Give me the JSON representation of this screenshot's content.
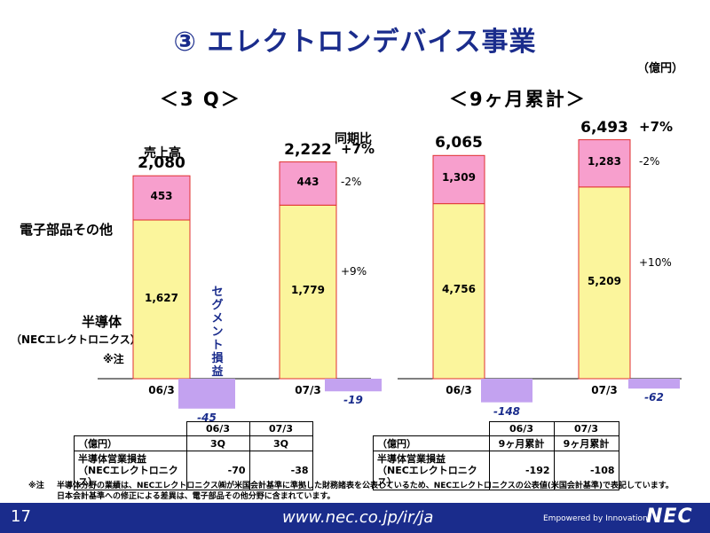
{
  "title": "③ エレクトロンデバイス事業",
  "unit": "（億円）",
  "left_panel": {
    "title": "＜3 Q＞"
  },
  "right_panel": {
    "title": "＜9ヶ月累計＞"
  },
  "labels": {
    "sales": "売上高",
    "electronic_parts": "電子部品その他",
    "semiconductor": "半導体",
    "nec_electronics": "（NECエレクトロニクス）",
    "note_mark": "※注",
    "yoy_header": "同期比",
    "segment_loss": "セグメント損益"
  },
  "chart_data": [
    {
      "type": "bar",
      "stacked": true,
      "categories": [
        "06/3",
        "07/3"
      ],
      "series": [
        {
          "name": "半導体",
          "values": [
            1627,
            1779
          ]
        },
        {
          "name": "電子部品その他",
          "values": [
            453,
            443
          ]
        },
        {
          "name": "セグメント損益",
          "values": [
            -45,
            -19
          ]
        }
      ],
      "totals": [
        2080,
        2222
      ],
      "totals_text": [
        "2,080",
        "2,222"
      ],
      "semi_text": [
        "1,627",
        "1,779"
      ],
      "parts_text": [
        "453",
        "443"
      ],
      "segment_text": [
        "-45",
        "-19"
      ],
      "yoy": {
        "total": "+7%",
        "parts": "-2%",
        "semi": "+9%"
      }
    },
    {
      "type": "bar",
      "stacked": true,
      "categories": [
        "06/3",
        "07/3"
      ],
      "series": [
        {
          "name": "半導体",
          "values": [
            4756,
            5209
          ]
        },
        {
          "name": "電子部品その他",
          "values": [
            1309,
            1283
          ]
        },
        {
          "name": "セグメント損益",
          "values": [
            -148,
            -62
          ]
        }
      ],
      "totals": [
        6065,
        6493
      ],
      "totals_text": [
        "6,065",
        "6,493"
      ],
      "semi_text": [
        "4,756",
        "5,209"
      ],
      "parts_text": [
        "1,309",
        "1,283"
      ],
      "segment_text": [
        "-148",
        "-62"
      ],
      "yoy": {
        "total": "+7%",
        "parts": "-2%",
        "semi": "+10%"
      }
    }
  ],
  "tables": {
    "left": {
      "header_cols": [
        "06/3",
        "07/3"
      ],
      "unit_label": "（億円）",
      "sub_cols": [
        "3Q",
        "3Q"
      ],
      "row_label_1": "半導体営業損益",
      "row_label_2": "（NECエレクトロニクス）",
      "values": [
        "-70",
        "-38"
      ]
    },
    "right": {
      "header_cols": [
        "06/3",
        "07/3"
      ],
      "unit_label": "（億円）",
      "sub_cols": [
        "9ヶ月累計",
        "9ヶ月累計"
      ],
      "row_label_1": "半導体営業損益",
      "row_label_2": "（NECエレクトロニクス）",
      "values": [
        "-192",
        "-108"
      ]
    }
  },
  "notes": {
    "mark": "※注",
    "line1": "半導体分野の業績は、NECエレクトロニクス㈱が米国会計基準に準拠した財務諸表を公表しているため、NECエレクトロニクスの公表値(米国会計基準)で表記しています。",
    "line2": "日本会計基準への修正による差異は、電子部品その他分野に含まれています。"
  },
  "footer": {
    "page": "17",
    "url": "www.nec.co.jp/ir/ja",
    "tagline": "Empowered by Innovation",
    "logo": "NEC"
  },
  "colors": {
    "semi": "#fbf59c",
    "parts": "#f79fcd",
    "segment": "#c3a2f0",
    "bar_border": "#e03030",
    "title": "#1a2c8c",
    "footer": "#1a2c8c"
  }
}
